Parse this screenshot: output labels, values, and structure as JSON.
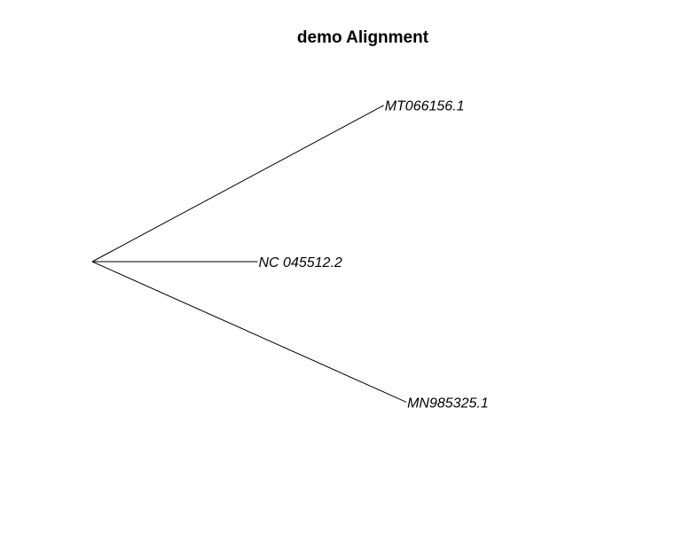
{
  "title": "demo Alignment",
  "colors": {
    "background": "#ffffff",
    "ink": "#000000"
  },
  "tree": {
    "layout": "unrooted-radial",
    "tips": [
      {
        "label": "MT066156.1",
        "branch_length": 1.0
      },
      {
        "label": "NC 045512.2",
        "branch_length": 0.5
      },
      {
        "label": "MN985325.1",
        "branch_length": 1.04
      }
    ]
  }
}
